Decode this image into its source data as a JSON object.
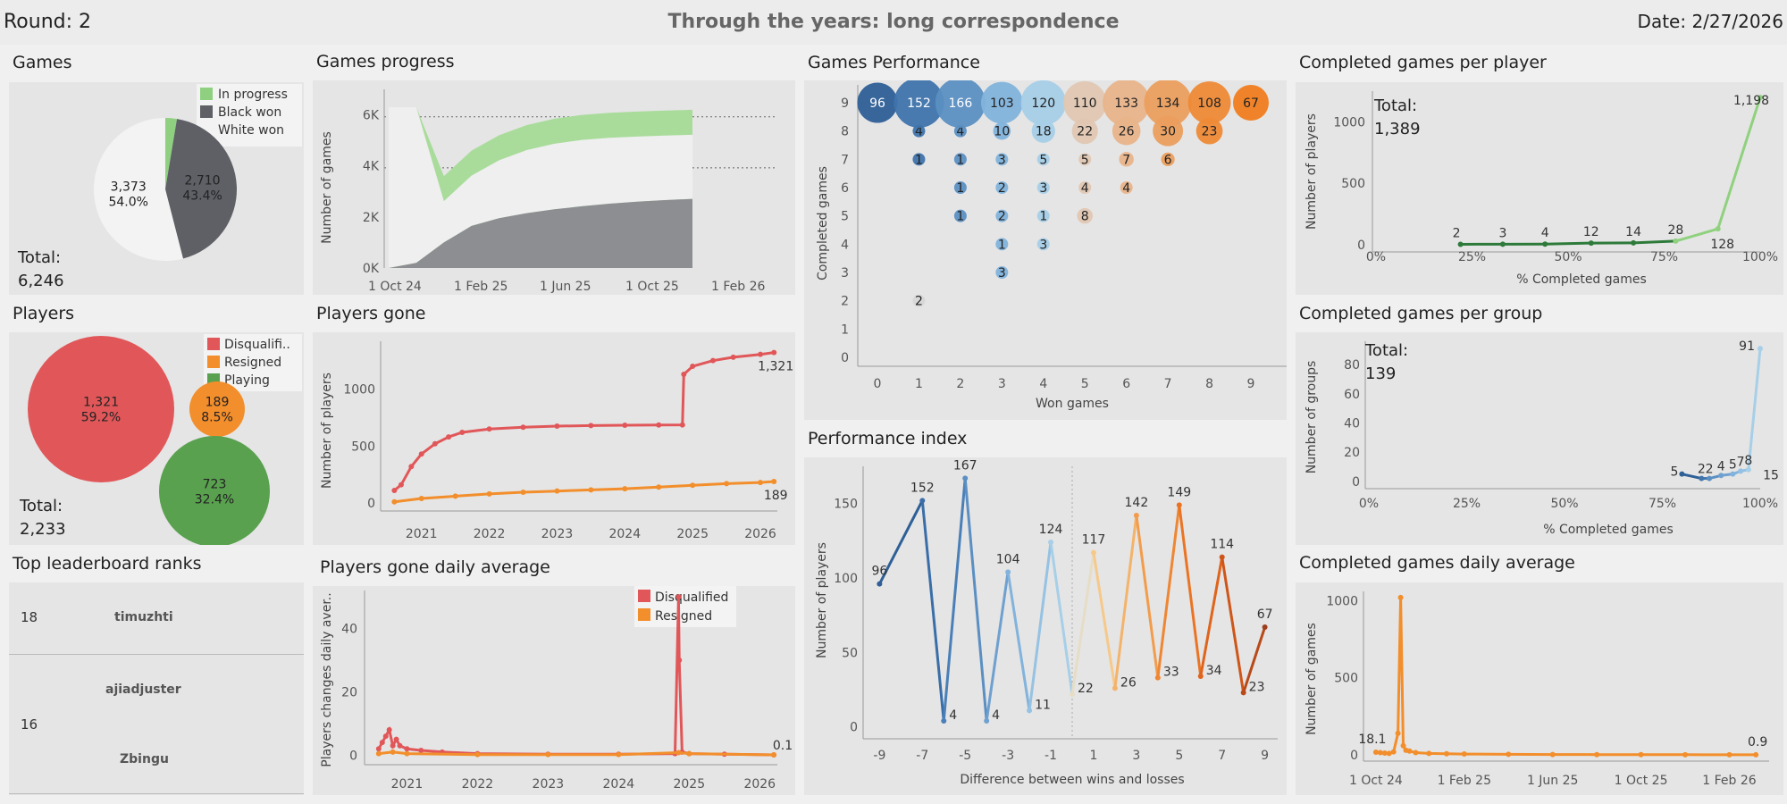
{
  "header": {
    "round": "Round: 2",
    "title": "Through the years: long correspondence",
    "date": "Date: 2/27/2026"
  },
  "panels": {
    "games": "Games",
    "games_progress": "Games progress",
    "games_performance": "Games Performance",
    "completed_per_player": "Completed games per player",
    "players": "Players",
    "players_gone": "Players gone",
    "completed_per_group": "Completed games per group",
    "leaderboard": "Top leaderboard ranks",
    "players_gone_daily": "Players gone daily average",
    "performance_index": "Performance index",
    "completed_daily": "Completed games daily average"
  },
  "games_total": {
    "label": "Total:",
    "value": "6,246"
  },
  "players_total": {
    "label": "Total:",
    "value": "2,233"
  },
  "per_player_total": {
    "label": "Total:",
    "value": "1,389"
  },
  "per_group_total": {
    "label": "Total:",
    "value": "139"
  },
  "leaderboard": {
    "row1": {
      "rank": "18",
      "name": "timuzhti"
    },
    "row2": {
      "rank": "16",
      "name1": "ajiadjuster",
      "name2": "Zbingu"
    }
  },
  "colors": {
    "green_light": "#a9dc9b",
    "dark_gray": "#5e6066",
    "red": "#e15759",
    "orange": "#f28e2b",
    "green": "#59a14f",
    "blue_dark": "#2e5f97",
    "blue_light": "#9ecae9"
  },
  "chart_data": [
    {
      "id": "games",
      "type": "pie",
      "legend": [
        "In progress",
        "Black won",
        "White won"
      ],
      "values": [
        163,
        2710,
        3373
      ],
      "labels": [
        "",
        "2,710\n43.4%",
        "3,373\n54.0%"
      ],
      "colors": [
        "#8ed07f",
        "#5e6066",
        "#f3f3f3"
      ]
    },
    {
      "id": "games_progress",
      "type": "area",
      "ylabel": "Number of games",
      "x_ticks": [
        "1 Oct 24",
        "1 Feb 25",
        "1 Jun 25",
        "1 Oct 25",
        "1 Feb 26"
      ],
      "y_ticks": [
        "0K",
        "2K",
        "4K",
        "6K"
      ],
      "ylim": [
        0,
        7000
      ],
      "series": [
        {
          "values": [
            6300,
            6300,
            3600,
            4600,
            5200,
            5600,
            5850,
            6000,
            6080,
            6130,
            6170,
            6200
          ]
        },
        {
          "values": [
            0,
            200,
            1000,
            1650,
            1950,
            2150,
            2300,
            2420,
            2520,
            2600,
            2660,
            2710
          ]
        }
      ]
    },
    {
      "id": "games_performance",
      "type": "scatter",
      "xlabel": "Won games",
      "ylabel": "Completed games",
      "x_ticks": [
        "0",
        "1",
        "2",
        "3",
        "4",
        "5",
        "6",
        "7",
        "8",
        "9"
      ],
      "y_ticks": [
        "0",
        "1",
        "2",
        "3",
        "4",
        "5",
        "6",
        "7",
        "8",
        "9"
      ],
      "points": [
        {
          "x": 0,
          "y": 9,
          "v": 96
        },
        {
          "x": 1,
          "y": 9,
          "v": 152
        },
        {
          "x": 2,
          "y": 9,
          "v": 166
        },
        {
          "x": 3,
          "y": 9,
          "v": 103
        },
        {
          "x": 4,
          "y": 9,
          "v": 120
        },
        {
          "x": 5,
          "y": 9,
          "v": 110
        },
        {
          "x": 6,
          "y": 9,
          "v": 133
        },
        {
          "x": 7,
          "y": 9,
          "v": 134
        },
        {
          "x": 8,
          "y": 9,
          "v": 108
        },
        {
          "x": 9,
          "y": 9,
          "v": 67
        },
        {
          "x": 1,
          "y": 8,
          "v": 4
        },
        {
          "x": 2,
          "y": 8,
          "v": 4
        },
        {
          "x": 3,
          "y": 8,
          "v": 10
        },
        {
          "x": 4,
          "y": 8,
          "v": 18
        },
        {
          "x": 5,
          "y": 8,
          "v": 22
        },
        {
          "x": 6,
          "y": 8,
          "v": 26
        },
        {
          "x": 7,
          "y": 8,
          "v": 30
        },
        {
          "x": 8,
          "y": 8,
          "v": 23
        },
        {
          "x": 1,
          "y": 7,
          "v": 1
        },
        {
          "x": 2,
          "y": 7,
          "v": 1
        },
        {
          "x": 3,
          "y": 7,
          "v": 3
        },
        {
          "x": 4,
          "y": 7,
          "v": 5
        },
        {
          "x": 5,
          "y": 7,
          "v": 5
        },
        {
          "x": 6,
          "y": 7,
          "v": 7
        },
        {
          "x": 7,
          "y": 7,
          "v": 6
        },
        {
          "x": 2,
          "y": 6,
          "v": 1
        },
        {
          "x": 3,
          "y": 6,
          "v": 2
        },
        {
          "x": 4,
          "y": 6,
          "v": 3
        },
        {
          "x": 5,
          "y": 6,
          "v": 4
        },
        {
          "x": 6,
          "y": 6,
          "v": 4
        },
        {
          "x": 2,
          "y": 5,
          "v": 1
        },
        {
          "x": 3,
          "y": 5,
          "v": 2
        },
        {
          "x": 4,
          "y": 5,
          "v": 1
        },
        {
          "x": 5,
          "y": 5,
          "v": 8
        },
        {
          "x": 3,
          "y": 4,
          "v": 1
        },
        {
          "x": 4,
          "y": 4,
          "v": 3
        },
        {
          "x": 3,
          "y": 3,
          "v": 3
        },
        {
          "x": 1,
          "y": 2,
          "v": 2
        }
      ]
    },
    {
      "id": "completed_per_player",
      "type": "line",
      "xlabel": "% Completed games",
      "ylabel": "Number of players",
      "x_ticks": [
        "0%",
        "25%",
        "50%",
        "75%",
        "100%"
      ],
      "y_ticks": [
        "0",
        "500",
        "1000"
      ],
      "xlim": [
        0,
        100
      ],
      "ylim": [
        -60,
        1250
      ],
      "x": [
        22,
        33,
        44,
        56,
        67,
        78,
        89,
        100
      ],
      "y": [
        2,
        3,
        4,
        12,
        14,
        28,
        128,
        1198
      ],
      "labels": [
        "2",
        "3",
        "4",
        "12",
        "14",
        "28",
        "128",
        "1,198"
      ]
    },
    {
      "id": "players",
      "type": "bubble",
      "legend": [
        "Disqualifi..",
        "Resigned",
        "Playing"
      ],
      "values": [
        1321,
        189,
        723
      ],
      "labels": [
        "1,321\n59.2%",
        "189\n8.5%",
        "723\n32.4%"
      ],
      "colors": [
        "#e15759",
        "#f28e2b",
        "#59a14f"
      ]
    },
    {
      "id": "players_gone",
      "type": "line",
      "ylabel": "Number of players",
      "x_ticks": [
        "2021",
        "2022",
        "2023",
        "2024",
        "2025",
        "2026"
      ],
      "y_ticks": [
        "0",
        "500",
        "1000"
      ],
      "xlim": [
        2020.45,
        2026.25
      ],
      "ylim": [
        -70,
        1420
      ],
      "series": [
        {
          "name": "Disqualified",
          "x": [
            2020.6,
            2020.7,
            2020.85,
            2021.0,
            2021.2,
            2021.4,
            2021.6,
            2022.0,
            2022.5,
            2023.0,
            2023.5,
            2024.0,
            2024.5,
            2024.85,
            2024.87,
            2025.0,
            2025.3,
            2025.6,
            2026.0,
            2026.2
          ],
          "y": [
            110,
            160,
            320,
            430,
            520,
            580,
            620,
            650,
            665,
            675,
            680,
            683,
            685,
            686,
            1130,
            1200,
            1250,
            1280,
            1305,
            1321
          ],
          "end_label": "1,321"
        },
        {
          "name": "Resigned",
          "x": [
            2020.6,
            2021.0,
            2021.5,
            2022.0,
            2022.5,
            2023.0,
            2023.5,
            2024.0,
            2024.5,
            2025.0,
            2025.5,
            2026.0,
            2026.2
          ],
          "y": [
            10,
            40,
            60,
            80,
            95,
            105,
            115,
            125,
            140,
            155,
            170,
            180,
            189
          ],
          "end_label": "189"
        }
      ]
    },
    {
      "id": "completed_per_group",
      "type": "line",
      "xlabel": "% Completed games",
      "ylabel": "Number of groups",
      "x_ticks": [
        "0%",
        "25%",
        "50%",
        "75%",
        "100%"
      ],
      "y_ticks": [
        "0",
        "20",
        "40",
        "60",
        "80"
      ],
      "xlim": [
        0,
        100
      ],
      "ylim": [
        -5,
        96
      ],
      "x": [
        80,
        85,
        87,
        90,
        93,
        95,
        97,
        100
      ],
      "y": [
        5,
        2,
        2,
        4,
        5,
        7,
        8,
        91
      ],
      "labels": [
        "5",
        "2",
        "2",
        "4",
        "5",
        "7",
        "8",
        "91"
      ],
      "end_label": "15"
    },
    {
      "id": "players_gone_daily",
      "type": "line",
      "ylabel": "Players changes daily aver..",
      "legend": [
        "Disqualified",
        "Resigned"
      ],
      "x_ticks": [
        "2021",
        "2022",
        "2023",
        "2024",
        "2025",
        "2026"
      ],
      "y_ticks": [
        "0",
        "20",
        "40"
      ],
      "xlim": [
        2020.45,
        2026.25
      ],
      "ylim": [
        -3,
        52
      ],
      "end_label": "0.1",
      "series": [
        {
          "name": "Disqualified",
          "x": [
            2020.6,
            2020.65,
            2020.7,
            2020.75,
            2020.8,
            2020.85,
            2020.9,
            2021.0,
            2021.2,
            2021.5,
            2022.0,
            2023.0,
            2024.0,
            2024.8,
            2024.85,
            2024.86,
            2024.9,
            2025.0,
            2025.5,
            2026.2
          ],
          "y": [
            2,
            4,
            6,
            8,
            3,
            5,
            3,
            2,
            1.5,
            1,
            0.5,
            0.3,
            0.3,
            0.5,
            50,
            30,
            1,
            0.5,
            0.3,
            0.1
          ]
        },
        {
          "name": "Resigned",
          "x": [
            2020.6,
            2020.8,
            2021.0,
            2022.0,
            2023.0,
            2024.0,
            2024.85,
            2025.0,
            2026.2
          ],
          "y": [
            0.5,
            1,
            0.5,
            0.2,
            0.2,
            0.2,
            0.8,
            0.5,
            0.1
          ]
        }
      ]
    },
    {
      "id": "performance_index",
      "type": "line",
      "xlabel": "Difference between wins and losses",
      "ylabel": "Number of players",
      "x_ticks": [
        "-9",
        "-7",
        "-5",
        "-3",
        "-1",
        "1",
        "3",
        "5",
        "7",
        "9"
      ],
      "y_ticks": [
        "0",
        "50",
        "100",
        "150"
      ],
      "xlim": [
        -9.6,
        9.6
      ],
      "ylim": [
        -8,
        175
      ],
      "x": [
        -9,
        -7,
        -6,
        -5,
        -4,
        -3,
        -2,
        -1,
        0,
        1,
        2,
        3,
        4,
        5,
        6,
        7,
        8,
        9
      ],
      "y": [
        96,
        152,
        4,
        167,
        4,
        104,
        11,
        124,
        22,
        117,
        26,
        142,
        33,
        149,
        34,
        114,
        23,
        67
      ],
      "labels": [
        "96",
        "152",
        "4",
        "167",
        "4",
        "104",
        "11",
        "124",
        "22",
        "117",
        "26",
        "142",
        "33",
        "149",
        "34",
        "114",
        "23",
        "67"
      ]
    },
    {
      "id": "completed_daily",
      "type": "line",
      "ylabel": "Number of games",
      "x_ticks": [
        "1 Oct 24",
        "1 Feb 25",
        "1 Jun 25",
        "1 Oct 25",
        "1 Feb 26"
      ],
      "y_ticks": [
        "0",
        "500",
        "1000"
      ],
      "xlim": [
        -0.1,
        4.45
      ],
      "ylim": [
        -40,
        1060
      ],
      "x": [
        0,
        0.05,
        0.1,
        0.15,
        0.2,
        0.25,
        0.28,
        0.31,
        0.34,
        0.38,
        0.45,
        0.6,
        0.8,
        1.0,
        1.5,
        2.0,
        2.5,
        3.0,
        3.5,
        4.0,
        4.3
      ],
      "y": [
        18.1,
        15,
        12,
        10,
        20,
        140,
        1020,
        60,
        30,
        25,
        15,
        10,
        8,
        6,
        4,
        3,
        2,
        2,
        1.5,
        1,
        0.9
      ],
      "first_label": "18.1",
      "end_label": "0.9"
    }
  ]
}
